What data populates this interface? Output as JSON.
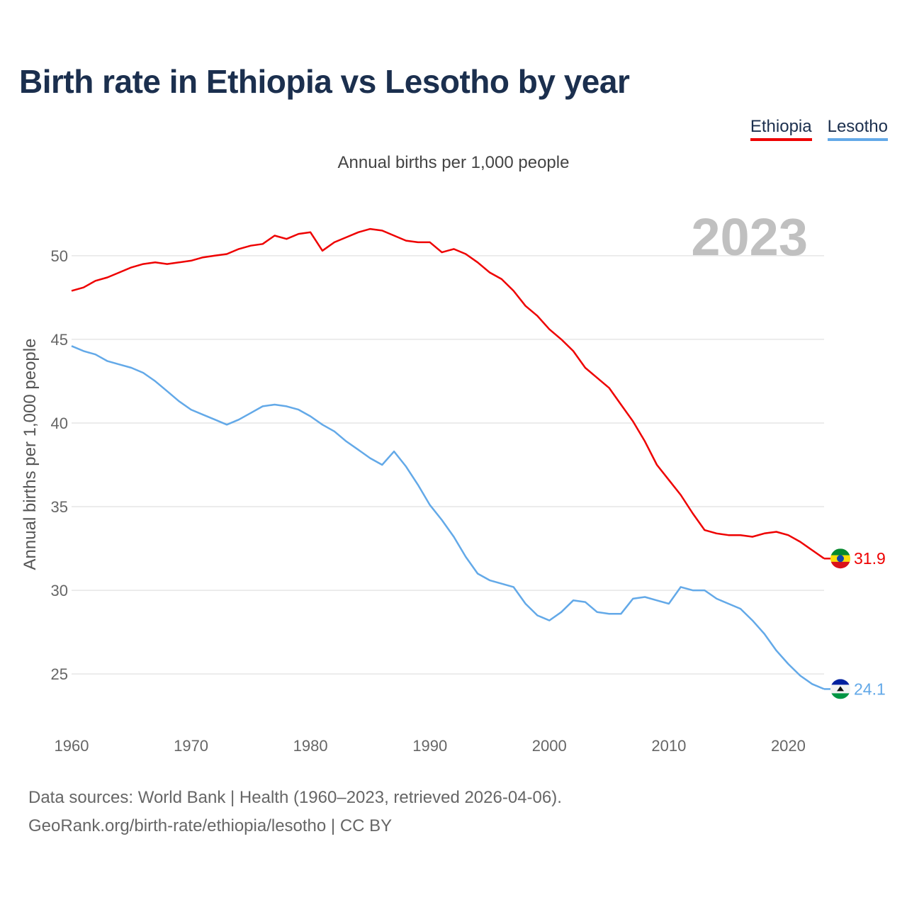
{
  "title": "Birth rate in Ethiopia vs Lesotho by year",
  "subtitle": "Annual births per 1,000 people",
  "legend": {
    "items": [
      {
        "label": "Ethiopia",
        "color": "#ee0000"
      },
      {
        "label": "Lesotho",
        "color": "#63a9e8"
      }
    ]
  },
  "year_watermark": "2023",
  "source": {
    "line1": "Data sources: World Bank | Health (1960–2023, retrieved 2026-04-06).",
    "line2": "GeoRank.org/birth-rate/ethiopia/lesotho | CC BY"
  },
  "chart_data": {
    "type": "line",
    "ylabel": "Annual births per 1,000 people",
    "xlabel": "",
    "xlim": [
      1960,
      2023
    ],
    "ylim": [
      22,
      53
    ],
    "xticks": [
      1960,
      1970,
      1980,
      1990,
      2000,
      2010,
      2020
    ],
    "yticks": [
      25,
      30,
      35,
      40,
      45,
      50
    ],
    "grid": true,
    "x": [
      1960,
      1961,
      1962,
      1963,
      1964,
      1965,
      1966,
      1967,
      1968,
      1969,
      1970,
      1971,
      1972,
      1973,
      1974,
      1975,
      1976,
      1977,
      1978,
      1979,
      1980,
      1981,
      1982,
      1983,
      1984,
      1985,
      1986,
      1987,
      1988,
      1989,
      1990,
      1991,
      1992,
      1993,
      1994,
      1995,
      1996,
      1997,
      1998,
      1999,
      2000,
      2001,
      2002,
      2003,
      2004,
      2005,
      2006,
      2007,
      2008,
      2009,
      2010,
      2011,
      2012,
      2013,
      2014,
      2015,
      2016,
      2017,
      2018,
      2019,
      2020,
      2021,
      2022,
      2023
    ],
    "series": [
      {
        "name": "Ethiopia",
        "color": "#ee0000",
        "end_label": "31.9",
        "values": [
          47.9,
          48.1,
          48.5,
          48.7,
          49.0,
          49.3,
          49.5,
          49.6,
          49.5,
          49.6,
          49.7,
          49.9,
          50.0,
          50.1,
          50.4,
          50.6,
          50.7,
          51.2,
          51.0,
          51.3,
          51.4,
          50.3,
          50.8,
          51.1,
          51.4,
          51.6,
          51.5,
          51.2,
          50.9,
          50.8,
          50.8,
          50.2,
          50.4,
          50.1,
          49.6,
          49.0,
          48.6,
          47.9,
          47.0,
          46.4,
          45.6,
          45.0,
          44.3,
          43.3,
          42.7,
          42.1,
          41.1,
          40.1,
          38.9,
          37.5,
          36.6,
          35.7,
          34.6,
          33.6,
          33.4,
          33.3,
          33.3,
          33.2,
          33.4,
          33.5,
          33.3,
          32.9,
          32.4,
          31.9
        ]
      },
      {
        "name": "Lesotho",
        "color": "#63a9e8",
        "end_label": "24.1",
        "values": [
          44.6,
          44.3,
          44.1,
          43.7,
          43.5,
          43.3,
          43.0,
          42.5,
          41.9,
          41.3,
          40.8,
          40.5,
          40.2,
          39.9,
          40.2,
          40.6,
          41.0,
          41.1,
          41.0,
          40.8,
          40.4,
          39.9,
          39.5,
          38.9,
          38.4,
          37.9,
          37.5,
          38.3,
          37.4,
          36.3,
          35.1,
          34.2,
          33.2,
          32.0,
          31.0,
          30.6,
          30.4,
          30.2,
          29.2,
          28.5,
          28.2,
          28.7,
          29.4,
          29.3,
          28.7,
          28.6,
          28.6,
          29.5,
          29.6,
          29.4,
          29.2,
          30.2,
          30.0,
          30.0,
          29.5,
          29.2,
          28.9,
          28.2,
          27.4,
          26.4,
          25.6,
          24.9,
          24.4,
          24.1
        ]
      }
    ]
  }
}
